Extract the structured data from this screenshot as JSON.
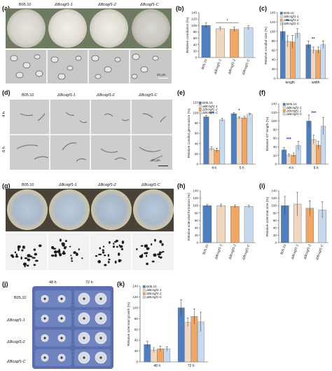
{
  "labels": {
    "a": "(a)",
    "b": "(b)",
    "c": "(c)",
    "d": "(d)",
    "e": "(e)",
    "f": "(f)",
    "g": "(g)",
    "h": "(h)",
    "i": "(i)",
    "j": "(j)",
    "k": "(k)"
  },
  "strains": [
    "B05.10",
    "ΔBcogf1-1",
    "ΔBcogf1-2",
    "ΔBcogf1-C"
  ],
  "time_4h": "4 h",
  "time_6h": "6 h",
  "time_48h": "48 h",
  "time_72h": "72 h",
  "scale_20um": "20 μm",
  "colors": {
    "b0510": "#4f7fbf",
    "k1": "#f0d7c2",
    "k2": "#f0a766",
    "kc": "#c7d9ef",
    "star": "#1d3fbf"
  },
  "chart_data": [
    {
      "id": "b",
      "type": "bar",
      "ylabel": "Relative conidiation (%)",
      "ylim": [
        0,
        140
      ],
      "yticks": [
        0,
        20,
        40,
        60,
        80,
        100,
        120,
        140
      ],
      "categories": [
        "B05.10",
        "ΔBcogf1-1",
        "ΔBcogf1-2",
        "ΔBcogf1-C"
      ],
      "values": [
        100,
        90,
        88,
        93
      ],
      "errors": [
        8,
        6,
        7,
        6
      ],
      "annotation": "*"
    },
    {
      "id": "c",
      "type": "bar",
      "ylabel": "Relative conidial size (%)",
      "ylim": [
        0,
        140
      ],
      "yticks": [
        0,
        20,
        40,
        60,
        80,
        100,
        120,
        140
      ],
      "categories": [
        "length",
        "width"
      ],
      "series": [
        {
          "name": "B05.10",
          "values": [
            100,
            72
          ],
          "errors": [
            18,
            8
          ]
        },
        {
          "name": "ΔBcogf1-1",
          "values": [
            79,
            60
          ],
          "errors": [
            12,
            7
          ]
        },
        {
          "name": "ΔBcogf1-2",
          "values": [
            78,
            60
          ],
          "errors": [
            14,
            7
          ]
        },
        {
          "name": "ΔBcogf1-C",
          "values": [
            96,
            72
          ],
          "errors": [
            10,
            8
          ]
        }
      ],
      "annotations": [
        "**",
        "**"
      ]
    },
    {
      "id": "e",
      "type": "bar",
      "ylabel": "Relative conidial germination (%)",
      "ylim": [
        0,
        120
      ],
      "yticks": [
        0,
        20,
        40,
        60,
        80,
        100,
        120
      ],
      "categories": [
        "4 h",
        "6 h"
      ],
      "series": [
        {
          "name": "B05.10",
          "values": [
            92,
            98
          ],
          "errors": [
            3,
            2
          ]
        },
        {
          "name": "ΔBcogf1-1",
          "values": [
            30,
            90
          ],
          "errors": [
            4,
            2
          ]
        },
        {
          "name": "ΔBcogf1-2",
          "values": [
            27,
            90
          ],
          "errors": [
            4,
            3
          ]
        },
        {
          "name": "ΔBcogf1-C",
          "values": [
            86,
            97
          ],
          "errors": [
            3,
            2
          ]
        }
      ],
      "annotations": [
        "***",
        "*"
      ]
    },
    {
      "id": "f",
      "type": "bar",
      "ylabel": "Relative GT length (%)",
      "ylim": [
        0,
        140
      ],
      "yticks": [
        0,
        20,
        40,
        60,
        80,
        100,
        120,
        140
      ],
      "categories": [
        "4 h",
        "6 h"
      ],
      "series": [
        {
          "name": "B05.10",
          "values": [
            33,
            100
          ],
          "errors": [
            5,
            14
          ]
        },
        {
          "name": "ΔBcogf1-1",
          "values": [
            20,
            57
          ],
          "errors": [
            4,
            10
          ]
        },
        {
          "name": "ΔBcogf1-2",
          "values": [
            21,
            44
          ],
          "errors": [
            5,
            9
          ]
        },
        {
          "name": "ΔBcogf1-C",
          "values": [
            43,
            88
          ],
          "errors": [
            10,
            20
          ]
        }
      ],
      "annotations": [
        "***",
        "***"
      ]
    },
    {
      "id": "h",
      "type": "bar",
      "ylabel": "Relative sclerotial  formation (%)",
      "ylim": [
        0,
        140
      ],
      "yticks": [
        0,
        20,
        40,
        60,
        80,
        100,
        120,
        140
      ],
      "categories": [
        "B05.10",
        "ΔBcogf1-1",
        "ΔBcogf1-2",
        "ΔBcogf1-C"
      ],
      "values": [
        100,
        100,
        98,
        98
      ],
      "errors": [
        3,
        4,
        4,
        3
      ]
    },
    {
      "id": "i",
      "type": "bar",
      "ylabel": "Relative sclerotial size (%)",
      "ylim": [
        0,
        140
      ],
      "yticks": [
        0,
        20,
        40,
        60,
        80,
        100,
        120,
        140
      ],
      "categories": [
        "B05.10",
        "ΔBcogf1-1",
        "ΔBcogf1-2",
        "ΔBcogf1-C"
      ],
      "values": [
        100,
        104,
        93,
        88
      ],
      "errors": [
        25,
        32,
        20,
        22
      ]
    },
    {
      "id": "k",
      "type": "bar",
      "ylabel": "Relative sclerotial growth (%)",
      "ylim": [
        0,
        140
      ],
      "yticks": [
        0,
        20,
        40,
        60,
        80,
        100,
        120,
        140
      ],
      "categories": [
        "48 h",
        "72 h"
      ],
      "series": [
        {
          "name": "B05.10",
          "values": [
            32,
            100
          ],
          "errors": [
            6,
            15
          ]
        },
        {
          "name": "ΔBcogf1-1",
          "values": [
            22,
            73
          ],
          "errors": [
            4,
            8
          ]
        },
        {
          "name": "ΔBcogf1-2",
          "values": [
            24,
            84
          ],
          "errors": [
            5,
            14
          ]
        },
        {
          "name": "ΔBcogf1-C",
          "values": [
            24,
            74
          ],
          "errors": [
            4,
            18
          ]
        }
      ]
    }
  ]
}
